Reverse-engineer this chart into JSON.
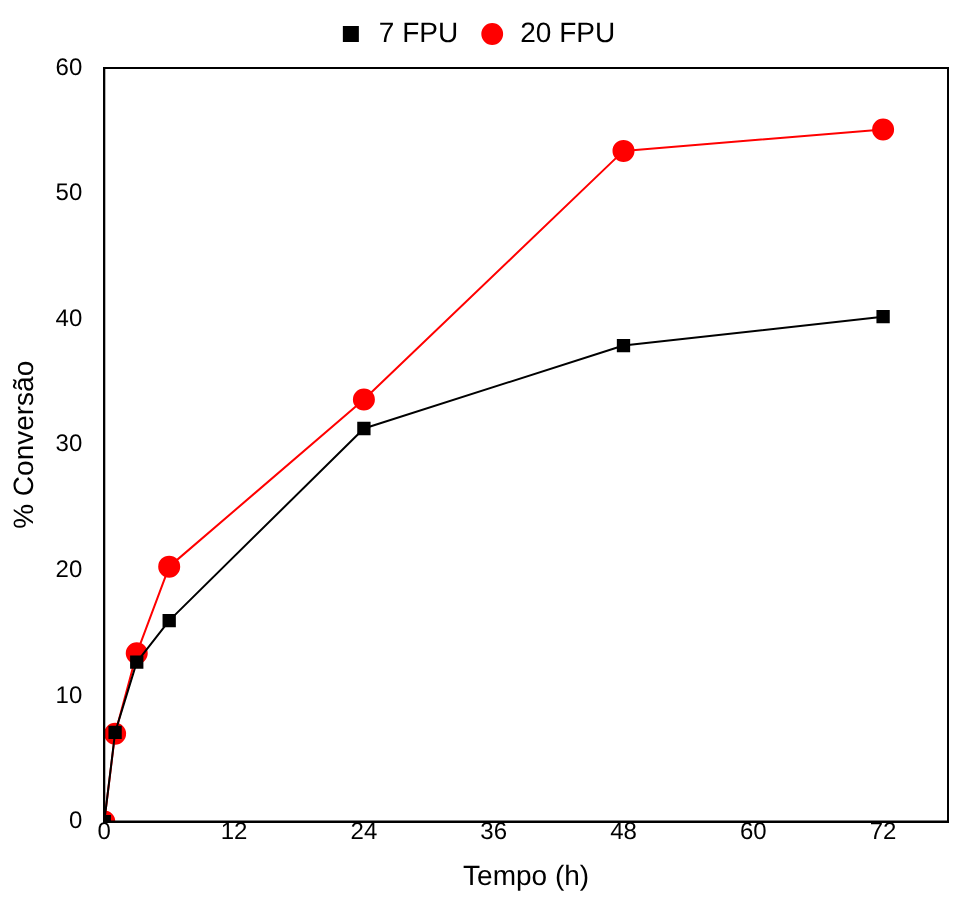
{
  "chart_data": {
    "type": "line",
    "xlabel": "Tempo (h)",
    "ylabel": "% Conversão",
    "x": [
      0,
      1,
      3,
      6,
      24,
      48,
      72
    ],
    "series": [
      {
        "name": "7 FPU",
        "color": "#000000",
        "marker": "square",
        "values": [
          0,
          7.1,
          12.7,
          16.0,
          31.3,
          37.9,
          40.2
        ]
      },
      {
        "name": "20 FPU",
        "color": "#ff0000",
        "marker": "circle",
        "values": [
          0,
          7.0,
          13.4,
          20.3,
          33.6,
          53.4,
          55.1
        ]
      }
    ],
    "xlim": [
      0,
      78
    ],
    "xticks": [
      0,
      12,
      24,
      36,
      48,
      60,
      72
    ],
    "ylim": [
      0,
      60
    ],
    "yticks": [
      0,
      10,
      20,
      30,
      40,
      50,
      60
    ],
    "grid": false,
    "legend": "top"
  }
}
